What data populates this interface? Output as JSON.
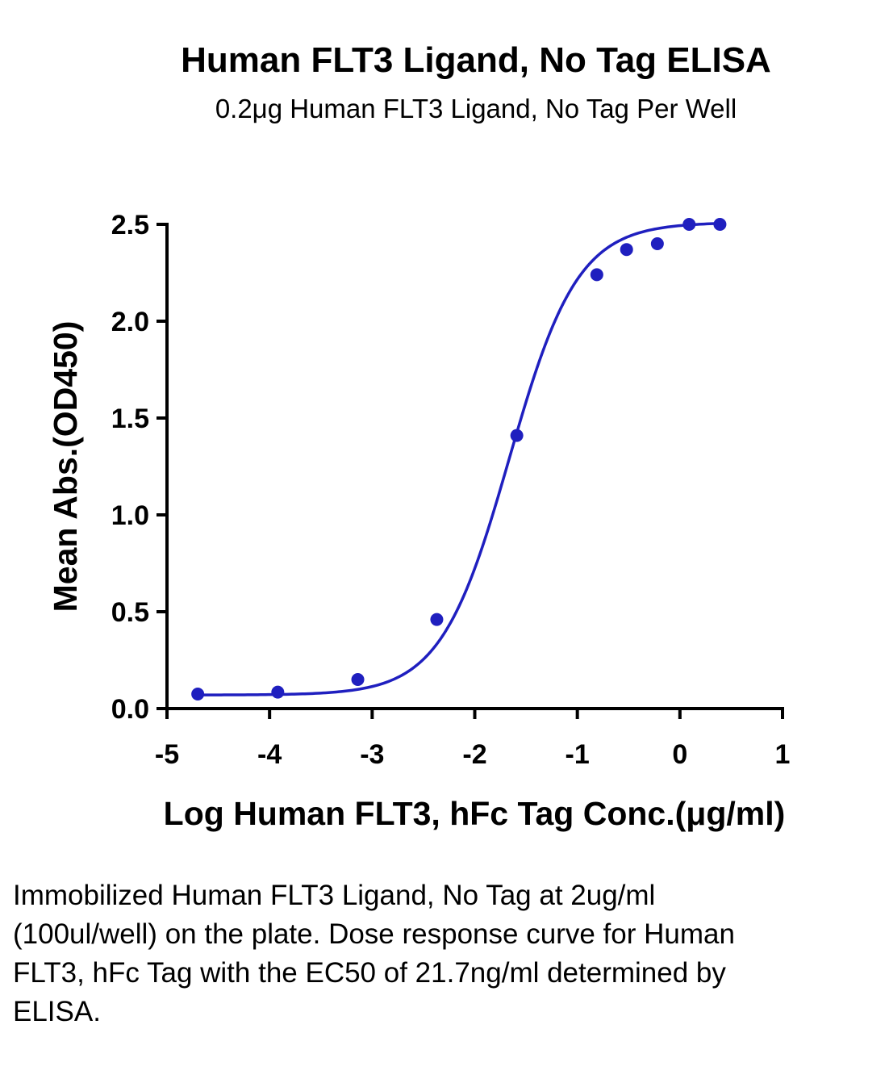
{
  "chart_data": {
    "type": "scatter",
    "title": "Human FLT3 Ligand, No Tag ELISA",
    "subtitle": "0.2μg Human FLT3 Ligand, No Tag Per Well",
    "xlabel": "Log Human FLT3, hFc Tag Conc.(μg/ml)",
    "ylabel": "Mean Abs.(OD450)",
    "xlim": [
      -5,
      1
    ],
    "ylim": [
      0,
      2.5
    ],
    "x_ticks": [
      "-5",
      "-4",
      "-3",
      "-2",
      "-1",
      "0",
      "1"
    ],
    "y_ticks": [
      "0.0",
      "0.5",
      "1.0",
      "1.5",
      "2.0",
      "2.5"
    ],
    "grid": false,
    "colors": {
      "series": "#1f1fbf"
    },
    "series": [
      {
        "x": [
          -4.7,
          -3.92,
          -3.14,
          -2.37,
          -1.59,
          -0.81,
          -0.52,
          -0.22,
          0.09,
          0.39
        ],
        "y": [
          0.075,
          0.085,
          0.15,
          0.46,
          1.41,
          2.24,
          2.37,
          2.4,
          2.5,
          2.5
        ]
      }
    ],
    "fit_curve": {
      "model": "4PL",
      "bottom": 0.07,
      "top": 2.51,
      "log_ec50": -1.664,
      "hill": 1.3
    }
  },
  "caption": "Immobilized Human FLT3 Ligand, No Tag at 2ug/ml (100ul/well) on the plate. Dose response curve for Human FLT3, hFc Tag with the EC50 of 21.7ng/ml determined by ELISA."
}
